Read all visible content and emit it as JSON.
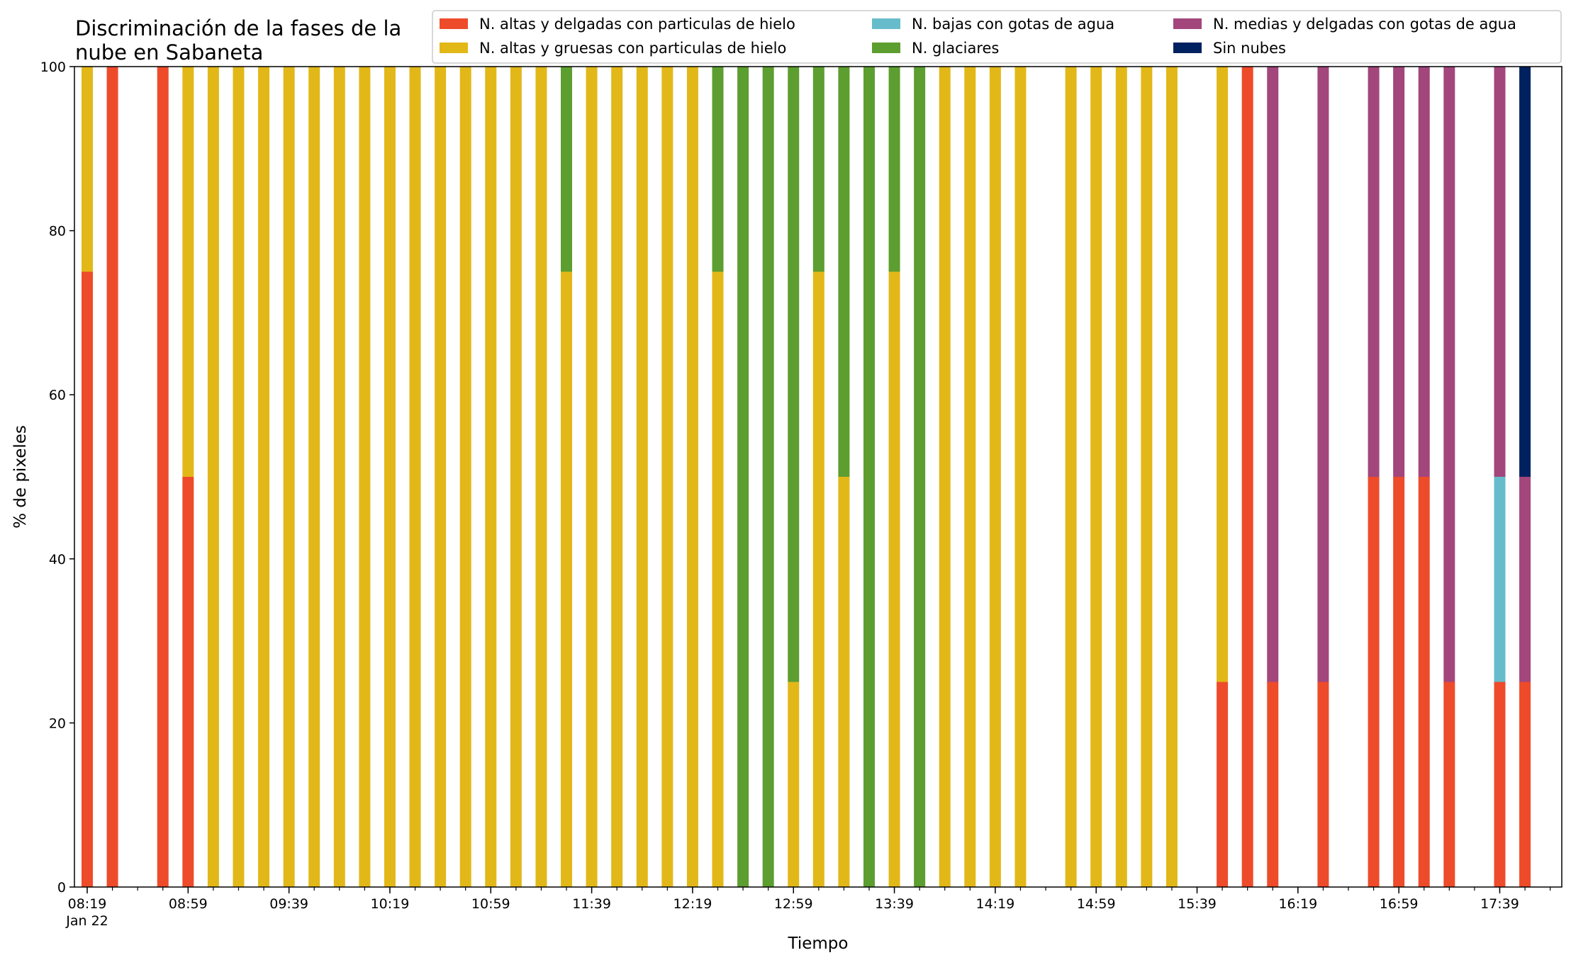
{
  "chart_data": {
    "type": "bar",
    "stacked": true,
    "title": [
      "Discriminación de la fases de la",
      "nube en Sabaneta"
    ],
    "xlabel": "Tiempo",
    "ylabel": "% de pixeles",
    "ylim": [
      0,
      100
    ],
    "yticks": [
      0,
      20,
      40,
      60,
      80,
      100
    ],
    "x_start": "08:19",
    "x_end": "18:09",
    "x_step_minutes": 10,
    "xtick_labels": [
      {
        "time": "08:19",
        "label": "08:19",
        "sublabel": "Jan 22"
      },
      {
        "time": "08:59",
        "label": "08:59"
      },
      {
        "time": "09:39",
        "label": "09:39"
      },
      {
        "time": "10:19",
        "label": "10:19"
      },
      {
        "time": "10:59",
        "label": "10:59"
      },
      {
        "time": "11:39",
        "label": "11:39"
      },
      {
        "time": "12:19",
        "label": "12:19"
      },
      {
        "time": "12:59",
        "label": "12:59"
      },
      {
        "time": "13:39",
        "label": "13:39"
      },
      {
        "time": "14:19",
        "label": "14:19"
      },
      {
        "time": "14:59",
        "label": "14:59"
      },
      {
        "time": "15:39",
        "label": "15:39"
      },
      {
        "time": "16:19",
        "label": "16:19"
      },
      {
        "time": "16:59",
        "label": "16:59"
      },
      {
        "time": "17:39",
        "label": "17:39"
      }
    ],
    "legend": {
      "placement": "top-right",
      "columns": 3
    },
    "series": [
      {
        "key": "thin_high_ice",
        "name": "N. altas y delgadas con particulas de hielo",
        "color": "#ee4b2b"
      },
      {
        "key": "thick_high_ice",
        "name": "N. altas y gruesas con particulas de hielo",
        "color": "#e2b818"
      },
      {
        "key": "low_water",
        "name": "N. bajas con gotas de agua",
        "color": "#67bccb"
      },
      {
        "key": "glacial",
        "name": "N. glaciares",
        "color": "#5c9e2f"
      },
      {
        "key": "mid_water",
        "name": "N. medias y delgadas con gotas de agua",
        "color": "#a2467c"
      },
      {
        "key": "clear",
        "name": "Sin nubes",
        "color": "#00215f"
      }
    ],
    "points": [
      {
        "time": "08:19",
        "values": [
          75,
          25,
          0,
          0,
          0,
          0
        ]
      },
      {
        "time": "08:29",
        "values": [
          100,
          0,
          0,
          0,
          0,
          0
        ]
      },
      {
        "time": "08:49",
        "values": [
          100,
          0,
          0,
          0,
          0,
          0
        ]
      },
      {
        "time": "08:59",
        "values": [
          50,
          50,
          0,
          0,
          0,
          0
        ]
      },
      {
        "time": "09:09",
        "values": [
          0,
          100,
          0,
          0,
          0,
          0
        ]
      },
      {
        "time": "09:19",
        "values": [
          0,
          100,
          0,
          0,
          0,
          0
        ]
      },
      {
        "time": "09:29",
        "values": [
          0,
          100,
          0,
          0,
          0,
          0
        ]
      },
      {
        "time": "09:39",
        "values": [
          0,
          100,
          0,
          0,
          0,
          0
        ]
      },
      {
        "time": "09:49",
        "values": [
          0,
          100,
          0,
          0,
          0,
          0
        ]
      },
      {
        "time": "09:59",
        "values": [
          0,
          100,
          0,
          0,
          0,
          0
        ]
      },
      {
        "time": "10:09",
        "values": [
          0,
          100,
          0,
          0,
          0,
          0
        ]
      },
      {
        "time": "10:19",
        "values": [
          0,
          100,
          0,
          0,
          0,
          0
        ]
      },
      {
        "time": "10:29",
        "values": [
          0,
          100,
          0,
          0,
          0,
          0
        ]
      },
      {
        "time": "10:39",
        "values": [
          0,
          100,
          0,
          0,
          0,
          0
        ]
      },
      {
        "time": "10:49",
        "values": [
          0,
          100,
          0,
          0,
          0,
          0
        ]
      },
      {
        "time": "10:59",
        "values": [
          0,
          100,
          0,
          0,
          0,
          0
        ]
      },
      {
        "time": "11:09",
        "values": [
          0,
          100,
          0,
          0,
          0,
          0
        ]
      },
      {
        "time": "11:19",
        "values": [
          0,
          100,
          0,
          0,
          0,
          0
        ]
      },
      {
        "time": "11:29",
        "values": [
          0,
          75,
          0,
          25,
          0,
          0
        ]
      },
      {
        "time": "11:39",
        "values": [
          0,
          100,
          0,
          0,
          0,
          0
        ]
      },
      {
        "time": "11:49",
        "values": [
          0,
          100,
          0,
          0,
          0,
          0
        ]
      },
      {
        "time": "11:59",
        "values": [
          0,
          100,
          0,
          0,
          0,
          0
        ]
      },
      {
        "time": "12:09",
        "values": [
          0,
          100,
          0,
          0,
          0,
          0
        ]
      },
      {
        "time": "12:19",
        "values": [
          0,
          100,
          0,
          0,
          0,
          0
        ]
      },
      {
        "time": "12:29",
        "values": [
          0,
          75,
          0,
          25,
          0,
          0
        ]
      },
      {
        "time": "12:39",
        "values": [
          0,
          0,
          0,
          100,
          0,
          0
        ]
      },
      {
        "time": "12:49",
        "values": [
          0,
          0,
          0,
          100,
          0,
          0
        ]
      },
      {
        "time": "12:59",
        "values": [
          0,
          25,
          0,
          75,
          0,
          0
        ]
      },
      {
        "time": "13:09",
        "values": [
          0,
          75,
          0,
          25,
          0,
          0
        ]
      },
      {
        "time": "13:19",
        "values": [
          0,
          50,
          0,
          50,
          0,
          0
        ]
      },
      {
        "time": "13:29",
        "values": [
          0,
          0,
          0,
          100,
          0,
          0
        ]
      },
      {
        "time": "13:39",
        "values": [
          0,
          75,
          0,
          25,
          0,
          0
        ]
      },
      {
        "time": "13:49",
        "values": [
          0,
          0,
          0,
          100,
          0,
          0
        ]
      },
      {
        "time": "13:59",
        "values": [
          0,
          100,
          0,
          0,
          0,
          0
        ]
      },
      {
        "time": "14:09",
        "values": [
          0,
          100,
          0,
          0,
          0,
          0
        ]
      },
      {
        "time": "14:19",
        "values": [
          0,
          100,
          0,
          0,
          0,
          0
        ]
      },
      {
        "time": "14:29",
        "values": [
          0,
          100,
          0,
          0,
          0,
          0
        ]
      },
      {
        "time": "14:49",
        "values": [
          0,
          100,
          0,
          0,
          0,
          0
        ]
      },
      {
        "time": "14:59",
        "values": [
          0,
          100,
          0,
          0,
          0,
          0
        ]
      },
      {
        "time": "15:09",
        "values": [
          0,
          100,
          0,
          0,
          0,
          0
        ]
      },
      {
        "time": "15:19",
        "values": [
          0,
          100,
          0,
          0,
          0,
          0
        ]
      },
      {
        "time": "15:29",
        "values": [
          0,
          100,
          0,
          0,
          0,
          0
        ]
      },
      {
        "time": "15:49",
        "values": [
          25,
          75,
          0,
          0,
          0,
          0
        ]
      },
      {
        "time": "15:59",
        "values": [
          100,
          0,
          0,
          0,
          0,
          0
        ]
      },
      {
        "time": "16:09",
        "values": [
          25,
          0,
          0,
          0,
          75,
          0
        ]
      },
      {
        "time": "16:29",
        "values": [
          25,
          0,
          0,
          0,
          75,
          0
        ]
      },
      {
        "time": "16:49",
        "values": [
          50,
          0,
          0,
          0,
          50,
          0
        ]
      },
      {
        "time": "16:59",
        "values": [
          50,
          0,
          0,
          0,
          50,
          0
        ]
      },
      {
        "time": "17:09",
        "values": [
          50,
          0,
          0,
          0,
          50,
          0
        ]
      },
      {
        "time": "17:19",
        "values": [
          25,
          0,
          0,
          0,
          75,
          0
        ]
      },
      {
        "time": "17:39",
        "values": [
          25,
          0,
          25,
          0,
          50,
          0
        ]
      },
      {
        "time": "17:49",
        "values": [
          25,
          0,
          0,
          0,
          25,
          50
        ]
      }
    ]
  }
}
